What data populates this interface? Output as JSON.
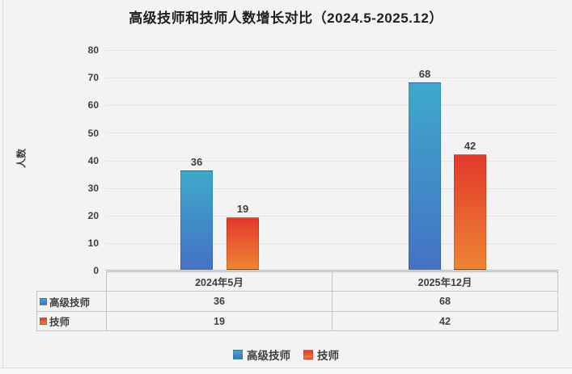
{
  "title": "高级技师和技师人数增长对比（2024.5-2025.12）",
  "y_ticks": [
    "80",
    "70",
    "60",
    "50",
    "40",
    "30",
    "20",
    "10",
    "0"
  ],
  "chart_data": {
    "type": "bar",
    "title": "高级技师和技师人数增长对比（2024.5-2025.12）",
    "categories": [
      "2024年5月",
      "2025年12月"
    ],
    "series": [
      {
        "name": "高级技师",
        "values": [
          36,
          68
        ],
        "color_top": "#3ea9cb",
        "color_bottom": "#4472c4"
      },
      {
        "name": "技师",
        "values": [
          19,
          42
        ],
        "color_top": "#e2392b",
        "color_bottom": "#ee8434"
      }
    ],
    "xlabel": "",
    "ylabel": "人数",
    "ylim": [
      0,
      80
    ],
    "y_tick_step": 10,
    "grid": true,
    "legend_position": "bottom",
    "data_table_shown": true
  },
  "colors": {
    "background": "#f3f3f3",
    "gridline": "#e4e4e4",
    "axis_line": "#b3b3b3",
    "table_border": "#c6c6c6",
    "text": "#3f3f3f"
  }
}
